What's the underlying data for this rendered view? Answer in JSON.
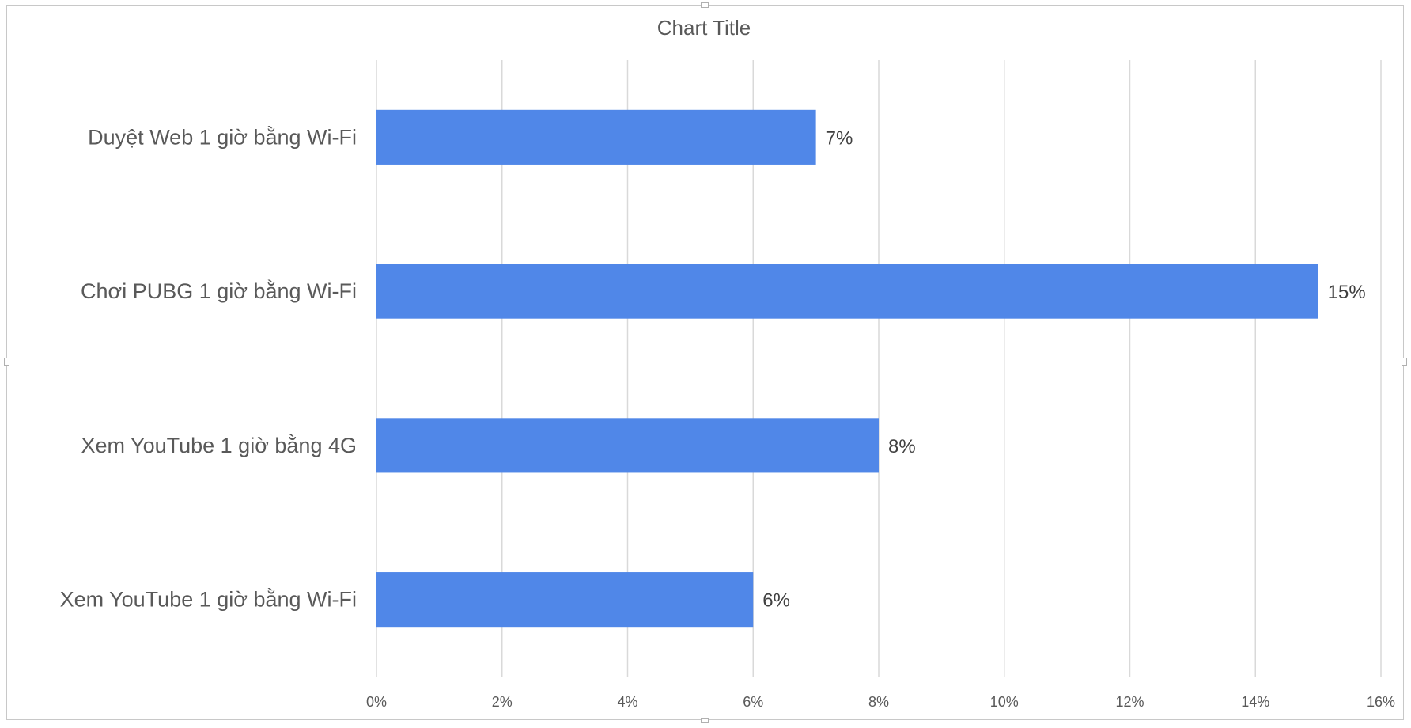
{
  "chart_data": {
    "type": "bar",
    "orientation": "horizontal",
    "title": "Chart Title",
    "categories": [
      "Duyệt Web 1 giờ bằng Wi-Fi",
      "Chơi PUBG 1 giờ bằng Wi-Fi",
      "Xem YouTube 1 giờ bằng 4G",
      "Xem YouTube 1 giờ bằng Wi-Fi"
    ],
    "values": [
      7,
      15,
      8,
      6
    ],
    "value_labels": [
      "7%",
      "15%",
      "8%",
      "6%"
    ],
    "xlim": [
      0,
      16
    ],
    "x_ticks": [
      "0%",
      "2%",
      "4%",
      "6%",
      "8%",
      "10%",
      "12%",
      "14%",
      "16%"
    ],
    "xlabel": "",
    "ylabel": "",
    "grid": "vertical",
    "legend": "none",
    "bar_color": "#5087E8",
    "grid_color": "#d9d9d9"
  }
}
